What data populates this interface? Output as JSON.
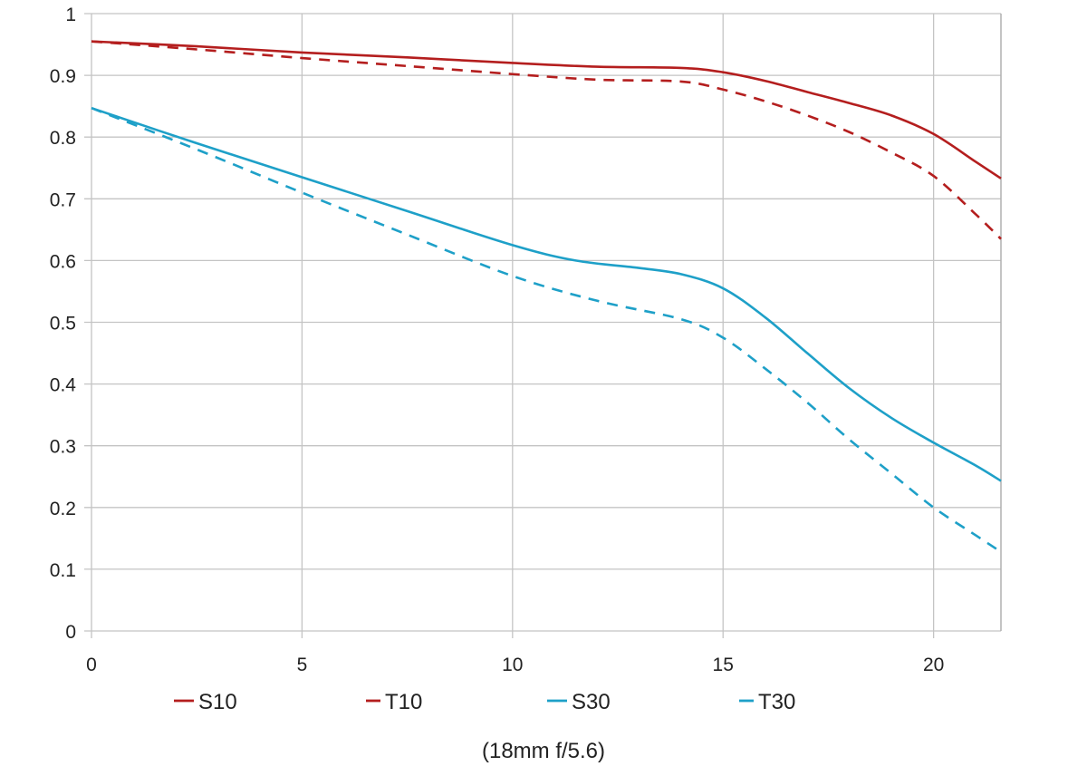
{
  "chart_data": {
    "type": "line",
    "title": "",
    "caption": "(18mm f/5.6)",
    "xlabel": "",
    "ylabel": "",
    "xlim": [
      0,
      21.6
    ],
    "ylim": [
      0,
      1
    ],
    "grid": true,
    "x_ticks": [
      0,
      5,
      10,
      15,
      20
    ],
    "x_tick_labels": [
      "0",
      "5",
      "10",
      "15",
      "20"
    ],
    "y_ticks": [
      0,
      0.1,
      0.2,
      0.3,
      0.4,
      0.5,
      0.6,
      0.7,
      0.8,
      0.9,
      1
    ],
    "y_tick_labels": [
      "0",
      "0.1",
      "0.2",
      "0.3",
      "0.4",
      "0.5",
      "0.6",
      "0.7",
      "0.8",
      "0.9",
      "1"
    ],
    "legend_position": "bottom",
    "series": [
      {
        "name": "S10",
        "color": "#b41e1e",
        "style": "solid",
        "x": [
          0,
          2.5,
          5,
          7.5,
          10,
          12,
          14,
          15,
          16,
          17,
          18,
          19,
          20,
          21,
          21.6
        ],
        "y": [
          0.955,
          0.947,
          0.937,
          0.929,
          0.92,
          0.914,
          0.912,
          0.905,
          0.891,
          0.873,
          0.855,
          0.835,
          0.805,
          0.76,
          0.733
        ]
      },
      {
        "name": "T10",
        "color": "#b41e1e",
        "style": "dashed",
        "x": [
          0,
          2.5,
          5,
          7.5,
          10,
          12,
          14,
          15,
          16,
          17,
          18,
          19,
          20,
          21,
          21.6
        ],
        "y": [
          0.955,
          0.942,
          0.928,
          0.915,
          0.902,
          0.893,
          0.89,
          0.877,
          0.858,
          0.835,
          0.808,
          0.775,
          0.737,
          0.675,
          0.635
        ]
      },
      {
        "name": "S30",
        "color": "#1ea0c8",
        "style": "solid",
        "x": [
          0,
          2.5,
          5,
          7.5,
          10,
          11.5,
          13,
          14,
          15,
          16,
          17,
          18,
          19,
          20,
          21,
          21.6
        ],
        "y": [
          0.847,
          0.79,
          0.735,
          0.68,
          0.625,
          0.6,
          0.588,
          0.578,
          0.555,
          0.508,
          0.45,
          0.393,
          0.345,
          0.305,
          0.268,
          0.243
        ]
      },
      {
        "name": "T30",
        "color": "#1ea0c8",
        "style": "dashed",
        "x": [
          0,
          2.5,
          5,
          7.5,
          10,
          12,
          14,
          15,
          16,
          17,
          18,
          19,
          20,
          21,
          21.6
        ],
        "y": [
          0.847,
          0.78,
          0.71,
          0.642,
          0.575,
          0.535,
          0.505,
          0.475,
          0.425,
          0.37,
          0.31,
          0.255,
          0.2,
          0.155,
          0.128
        ]
      }
    ]
  }
}
